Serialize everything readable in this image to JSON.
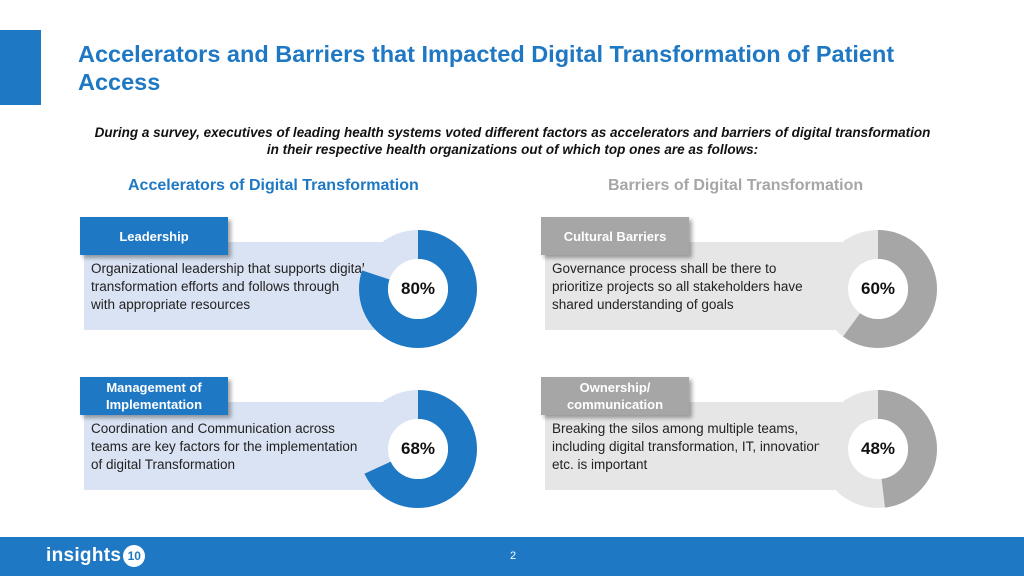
{
  "header": {
    "title": "Accelerators and Barriers that Impacted Digital Transformation of Patient Access",
    "subtitle": "During a survey, executives of leading health systems voted different factors as accelerators and barriers of digital transformation in their respective health organizations out of which top ones are as follows:"
  },
  "columns": {
    "accelerators_heading": "Accelerators of Digital Transformation",
    "barriers_heading": "Barriers of Digital Transformation"
  },
  "accelerators": [
    {
      "tag": "Leadership",
      "text": "Organizational leadership that supports digital transformation efforts and follows through with appropriate resources",
      "percent_label": "80%",
      "percent": 80
    },
    {
      "tag": "Management of Implementation",
      "text": "Coordination and Communication across teams are key factors for the implementation of digital Transformation",
      "percent_label": "68%",
      "percent": 68
    }
  ],
  "barriers": [
    {
      "tag": "Cultural Barriers",
      "text": "Governance process shall be there to prioritize projects so all stakeholders have shared understanding of goals",
      "percent_label": "60%",
      "percent": 60
    },
    {
      "tag": "Ownership/ communication",
      "text": "Breaking the silos among multiple teams, including digital transformation, IT, innovation etc. is important",
      "percent_label": "48%",
      "percent": 48
    }
  ],
  "colors": {
    "accent_blue": "#1f78c4",
    "blue_track": "#dae3f3",
    "grey_fill": "#a6a6a6",
    "grey_track": "#e7e6e6"
  },
  "footer": {
    "logo_text": "insights",
    "logo_badge": "10",
    "page_number": "2"
  }
}
